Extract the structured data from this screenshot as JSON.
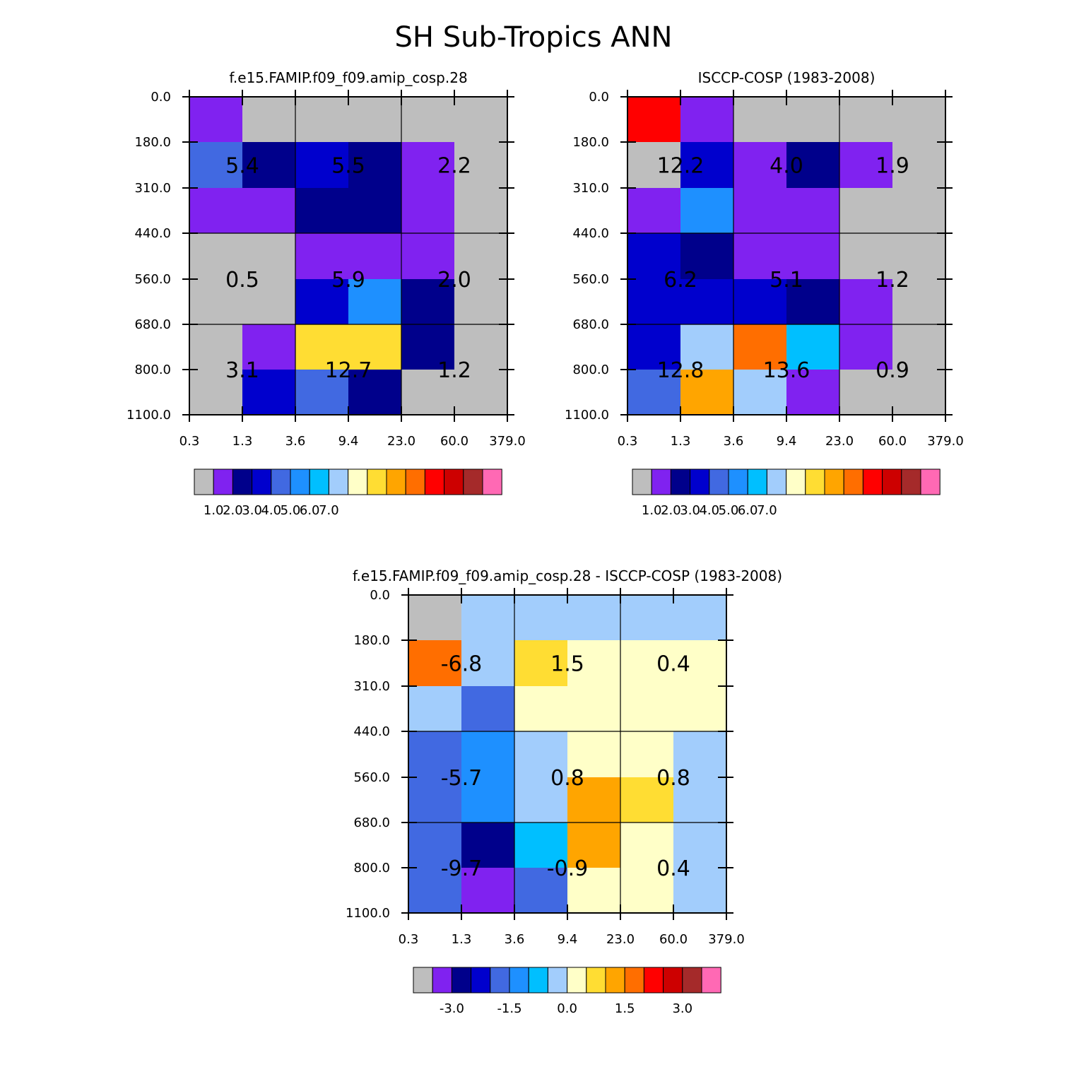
{
  "title": "SH Sub-Tropics ANN",
  "colors": {
    "gray": "#bebebe",
    "purple": "#8022f0",
    "navy": "#00008b",
    "blue": "#0000cd",
    "royal": "#4169e1",
    "dodger": "#1e90ff",
    "deepsky": "#00bfff",
    "lightblue": "#a2cdfc",
    "cream": "#ffffc8",
    "gold": "#ffdd33",
    "orange": "#ffa500",
    "darkorange": "#ff6e00",
    "red": "#ff0000",
    "darkred": "#cd0000",
    "brown": "#a52a2a",
    "pink": "#ff69b4"
  },
  "colorbar_palette": [
    "gray",
    "purple",
    "navy",
    "blue",
    "royal",
    "dodger",
    "deepsky",
    "lightblue",
    "cream",
    "gold",
    "orange",
    "darkorange",
    "red",
    "darkred",
    "brown",
    "pink"
  ],
  "chart_data": [
    {
      "type": "heatmap",
      "title": "f.e15.FAMIP.f09_f09.amip_cosp.28",
      "x_ticks": [
        "0.3",
        "1.3",
        "3.6",
        "9.4",
        "23.0",
        "60.0",
        "379.0"
      ],
      "y_ticks": [
        "0.0",
        "180.0",
        "310.0",
        "440.0",
        "560.0",
        "680.0",
        "800.0",
        "1100.0"
      ],
      "grid": [
        [
          "purple",
          "gray",
          "gray",
          "gray",
          "gray",
          "gray"
        ],
        [
          "royal",
          "navy",
          "blue",
          "navy",
          "purple",
          "gray"
        ],
        [
          "purple",
          "purple",
          "navy",
          "navy",
          "purple",
          "gray"
        ],
        [
          "gray",
          "gray",
          "purple",
          "purple",
          "purple",
          "gray"
        ],
        [
          "gray",
          "gray",
          "blue",
          "dodger",
          "navy",
          "gray"
        ],
        [
          "gray",
          "purple",
          "gold",
          "gold",
          "navy",
          "gray"
        ],
        [
          "gray",
          "blue",
          "royal",
          "navy",
          "gray",
          "gray"
        ]
      ],
      "block_values": [
        [
          "5.4",
          "5.5",
          "2.2"
        ],
        [
          "0.5",
          "5.9",
          "2.0"
        ],
        [
          "3.1",
          "12.7",
          "1.2"
        ]
      ],
      "colorbar_labels": [
        "1.0",
        "2.0",
        "3.0",
        "4.0",
        "5.0",
        "6.0",
        "7.0"
      ]
    },
    {
      "type": "heatmap",
      "title": "ISCCP-COSP (1983-2008)",
      "x_ticks": [
        "0.3",
        "1.3",
        "3.6",
        "9.4",
        "23.0",
        "60.0",
        "379.0"
      ],
      "y_ticks": [
        "0.0",
        "180.0",
        "310.0",
        "440.0",
        "560.0",
        "680.0",
        "800.0",
        "1100.0"
      ],
      "grid": [
        [
          "red",
          "purple",
          "gray",
          "gray",
          "gray",
          "gray"
        ],
        [
          "gray",
          "blue",
          "purple",
          "navy",
          "purple",
          "gray"
        ],
        [
          "purple",
          "dodger",
          "purple",
          "purple",
          "gray",
          "gray"
        ],
        [
          "blue",
          "navy",
          "purple",
          "purple",
          "gray",
          "gray"
        ],
        [
          "blue",
          "blue",
          "blue",
          "navy",
          "purple",
          "gray"
        ],
        [
          "blue",
          "lightblue",
          "darkorange",
          "deepsky",
          "purple",
          "gray"
        ],
        [
          "royal",
          "orange",
          "lightblue",
          "purple",
          "gray",
          "gray"
        ]
      ],
      "block_values": [
        [
          "12.2",
          "4.0",
          "1.9"
        ],
        [
          "6.2",
          "5.1",
          "1.2"
        ],
        [
          "12.8",
          "13.6",
          "0.9"
        ]
      ],
      "colorbar_labels": [
        "1.0",
        "2.0",
        "3.0",
        "4.0",
        "5.0",
        "6.0",
        "7.0"
      ]
    },
    {
      "type": "heatmap",
      "title": "f.e15.FAMIP.f09_f09.amip_cosp.28 - ISCCP-COSP (1983-2008)",
      "x_ticks": [
        "0.3",
        "1.3",
        "3.6",
        "9.4",
        "23.0",
        "60.0",
        "379.0"
      ],
      "y_ticks": [
        "0.0",
        "180.0",
        "310.0",
        "440.0",
        "560.0",
        "680.0",
        "800.0",
        "1100.0"
      ],
      "grid": [
        [
          "gray",
          "lightblue",
          "lightblue",
          "lightblue",
          "lightblue",
          "lightblue"
        ],
        [
          "darkorange",
          "lightblue",
          "gold",
          "cream",
          "cream",
          "cream"
        ],
        [
          "lightblue",
          "royal",
          "cream",
          "cream",
          "cream",
          "cream"
        ],
        [
          "royal",
          "dodger",
          "lightblue",
          "cream",
          "cream",
          "lightblue"
        ],
        [
          "royal",
          "dodger",
          "lightblue",
          "orange",
          "gold",
          "lightblue"
        ],
        [
          "royal",
          "navy",
          "deepsky",
          "orange",
          "cream",
          "lightblue"
        ],
        [
          "royal",
          "purple",
          "royal",
          "cream",
          "cream",
          "lightblue"
        ]
      ],
      "block_values": [
        [
          "-6.8",
          "1.5",
          "0.4"
        ],
        [
          "-5.7",
          "0.8",
          "0.8"
        ],
        [
          "-9.7",
          "-0.9",
          "0.4"
        ]
      ],
      "colorbar_labels": [
        "-3.0",
        "-1.5",
        "0.0",
        "1.5",
        "3.0"
      ]
    }
  ]
}
